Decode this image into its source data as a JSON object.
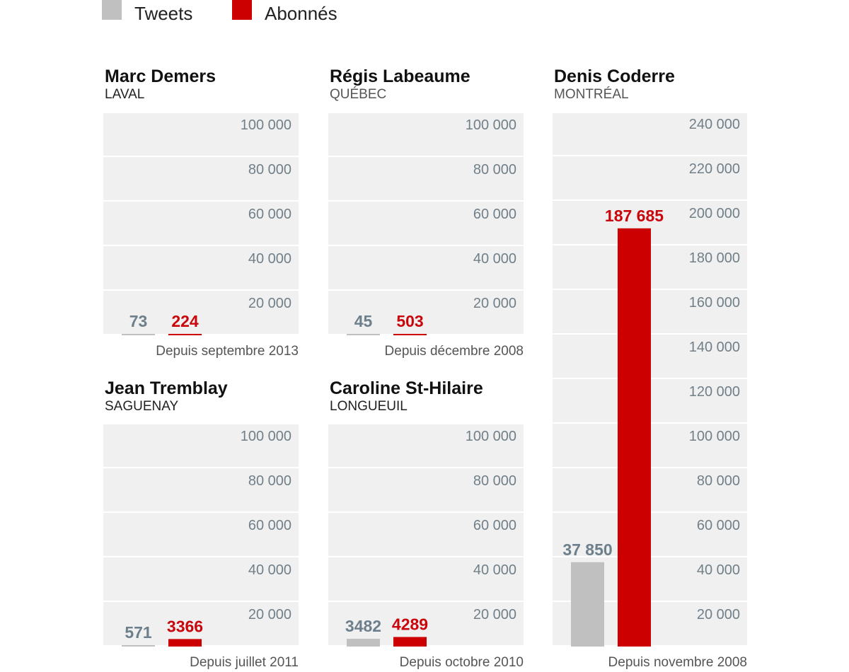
{
  "legend": {
    "tweets_label": "Tweets",
    "abonnes_label": "Abonnés"
  },
  "colors": {
    "tweets": "#c0c0c0",
    "abonnes": "#cc0000",
    "background_band": "#f0f0f0",
    "tick_text": "#707f88"
  },
  "chart_data": [
    {
      "type": "bar",
      "title": "Marc Demers",
      "subtitle": "LAVAL",
      "caption": "Depuis septembre 2013",
      "categories": [
        "Tweets",
        "Abonnés"
      ],
      "values": [
        73,
        224
      ],
      "value_labels": [
        "73",
        "224"
      ],
      "ylim": [
        0,
        100000
      ],
      "ticks": [
        20000,
        40000,
        60000,
        80000,
        100000
      ],
      "tick_labels": [
        "20 000",
        "40 000",
        "60 000",
        "80 000",
        "100 000"
      ]
    },
    {
      "type": "bar",
      "title": "Régis Labeaume",
      "subtitle": "QUÉBEC",
      "caption": "Depuis décembre 2008",
      "categories": [
        "Tweets",
        "Abonnés"
      ],
      "values": [
        45,
        503
      ],
      "value_labels": [
        "45",
        "503"
      ],
      "ylim": [
        0,
        100000
      ],
      "ticks": [
        20000,
        40000,
        60000,
        80000,
        100000
      ],
      "tick_labels": [
        "20 000",
        "40 000",
        "60 000",
        "80 000",
        "100 000"
      ]
    },
    {
      "type": "bar",
      "title": "Denis Coderre",
      "subtitle": "MONTRÉAL",
      "caption": "Depuis novembre 2008",
      "categories": [
        "Tweets",
        "Abonnés"
      ],
      "values": [
        37850,
        187685
      ],
      "value_labels": [
        "37 850",
        "187 685"
      ],
      "ylim": [
        0,
        240000
      ],
      "ticks": [
        20000,
        40000,
        60000,
        80000,
        100000,
        120000,
        140000,
        160000,
        180000,
        200000,
        220000,
        240000
      ],
      "tick_labels": [
        "20 000",
        "40 000",
        "60 000",
        "80 000",
        "100 000",
        "120 000",
        "140 000",
        "160 000",
        "180 000",
        "200 000",
        "220 000",
        "240 000"
      ]
    },
    {
      "type": "bar",
      "title": "Jean Tremblay",
      "subtitle": "SAGUENAY",
      "caption": "Depuis juillet 2011",
      "categories": [
        "Tweets",
        "Abonnés"
      ],
      "values": [
        571,
        3366
      ],
      "value_labels": [
        "571",
        "3366"
      ],
      "ylim": [
        0,
        100000
      ],
      "ticks": [
        20000,
        40000,
        60000,
        80000,
        100000
      ],
      "tick_labels": [
        "20 000",
        "40 000",
        "60 000",
        "80 000",
        "100 000"
      ]
    },
    {
      "type": "bar",
      "title": "Caroline St-Hilaire",
      "subtitle": "LONGUEUIL",
      "caption": "Depuis octobre 2010",
      "categories": [
        "Tweets",
        "Abonnés"
      ],
      "values": [
        3482,
        4289
      ],
      "value_labels": [
        "3482",
        "4289"
      ],
      "ylim": [
        0,
        100000
      ],
      "ticks": [
        20000,
        40000,
        60000,
        80000,
        100000
      ],
      "tick_labels": [
        "20 000",
        "40 000",
        "60 000",
        "80 000",
        "100 000"
      ]
    }
  ]
}
